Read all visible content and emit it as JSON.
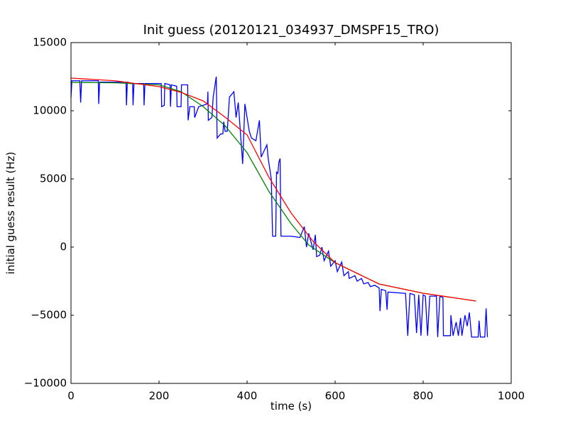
{
  "chart_data": {
    "type": "line",
    "title": "Init guess (20120121_034937_DMSPF15_TRO)",
    "x_label": "time (s)",
    "y_label": "initial guess result (Hz)",
    "xlim": [
      0,
      1000
    ],
    "xticks": [
      0,
      200,
      400,
      600,
      800,
      1000
    ],
    "ylim": [
      -10000,
      15000
    ],
    "yticks": [
      {
        "value": -10000,
        "label": "−10000"
      },
      {
        "value": -5000,
        "label": "−5000"
      },
      0,
      5000,
      10000,
      15000
    ],
    "series": [
      {
        "color": "#0000ff",
        "x": [
          0,
          2,
          20,
          22,
          24,
          62,
          63,
          65,
          125,
          126,
          128,
          140,
          141,
          143,
          165,
          166,
          168,
          205,
          206,
          212,
          213,
          225,
          226,
          228,
          240,
          241,
          250,
          251,
          265,
          266,
          270,
          280,
          281,
          290,
          310,
          311,
          312,
          320,
          323,
          330,
          332,
          340,
          345,
          347,
          350,
          355,
          360,
          370,
          375,
          380,
          390,
          395,
          405,
          410,
          420,
          428,
          432,
          445,
          448,
          455,
          458,
          465,
          467,
          470,
          472,
          475,
          477,
          500,
          520,
          530,
          535,
          540,
          550,
          555,
          558,
          565,
          570,
          575,
          585,
          590,
          600,
          605,
          615,
          620,
          630,
          632,
          645,
          650,
          660,
          665,
          675,
          680,
          690,
          700,
          702,
          705,
          715,
          718,
          720,
          760,
          765,
          770,
          780,
          785,
          790,
          795,
          800,
          805,
          810,
          815,
          830,
          833,
          838,
          845,
          846,
          862,
          863,
          868,
          875,
          880,
          885,
          888,
          895,
          900,
          905,
          910,
          925,
          927,
          930,
          940,
          943,
          946
        ],
        "values": [
          11000,
          12200,
          12200,
          10600,
          12200,
          12200,
          10500,
          12100,
          12100,
          10400,
          12100,
          12000,
          10400,
          12000,
          12000,
          10400,
          12000,
          12000,
          10300,
          10400,
          12000,
          11900,
          10300,
          11900,
          11800,
          10300,
          10300,
          11900,
          11900,
          9300,
          10300,
          10300,
          9500,
          10300,
          10500,
          11400,
          9300,
          9500,
          11000,
          12500,
          8000,
          8300,
          8300,
          9200,
          8500,
          8500,
          11000,
          11400,
          9500,
          10600,
          6100,
          10500,
          8500,
          8000,
          7800,
          9300,
          6600,
          7500,
          6500,
          5000,
          800,
          800,
          5500,
          5400,
          6200,
          6500,
          800,
          800,
          700,
          1500,
          0,
          1000,
          -200,
          900,
          -700,
          -600,
          0,
          -1000,
          -300,
          -1400,
          -1000,
          -1800,
          -1100,
          -2100,
          -1800,
          -2300,
          -2100,
          -2500,
          -2300,
          -2700,
          -2600,
          -2900,
          -2800,
          -3000,
          -4700,
          -3100,
          -3200,
          -4600,
          -3300,
          -3400,
          -6500,
          -3400,
          -3500,
          -6300,
          -3500,
          -6500,
          -3500,
          -3600,
          -6500,
          -3600,
          -3600,
          -6600,
          -3600,
          -3700,
          -6500,
          -6500,
          -5000,
          -6500,
          -5500,
          -6500,
          -5200,
          -6500,
          -5000,
          -5800,
          -4800,
          -6600,
          -6600,
          -5400,
          -6600,
          -6600,
          -4500,
          -6600
        ]
      },
      {
        "color": "#008000",
        "x": [
          0,
          100,
          200,
          250,
          300,
          350,
          400,
          450,
          500,
          540,
          600,
          650,
          700,
          800,
          920
        ],
        "values": [
          12083,
          12050,
          11900,
          11400,
          10312,
          8900,
          6927,
          4062,
          1718,
          156,
          -1146,
          -1927,
          -2708,
          -3385,
          -3958
        ]
      },
      {
        "color": "#ff0000",
        "x": [
          0,
          100,
          200,
          250,
          300,
          350,
          400,
          450,
          500,
          550,
          600,
          650,
          700,
          800,
          920
        ],
        "values": [
          12396,
          12200,
          11770,
          11350,
          10729,
          9531,
          8229,
          5104,
          2500,
          417,
          -1146,
          -1927,
          -2708,
          -3385,
          -3958
        ]
      }
    ]
  }
}
